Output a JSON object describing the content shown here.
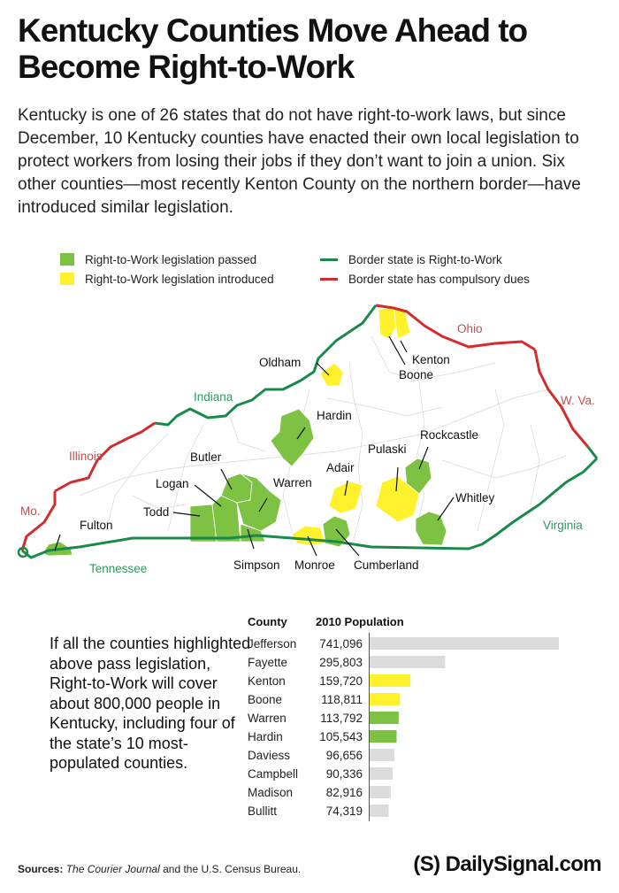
{
  "header": {
    "title": "Kentucky Counties Move Ahead to Become Right-to-Work",
    "intro": "Kentucky is one of 26 states that do not have right-to-work laws, but since December, 10 Kentucky counties have enacted their own local legislation to protect workers from losing their jobs if they don’t want to join a union. Six other counties—most recently Kenton County on the northern border—have introduced similar legislation."
  },
  "legend": {
    "passed": "Right-to-Work legislation passed",
    "introduced": "Right-to-Work legislation introduced",
    "border_rtw": "Border state is Right-to-Work",
    "border_dues": "Border state has compulsory dues"
  },
  "colors": {
    "passed": "#7dc242",
    "introduced": "#fff22d",
    "border_rtw": "#1a8a4a",
    "border_dues": "#d42c2c",
    "bar_other": "#dcdcdc",
    "state_label_red": "#c0504d",
    "state_label_green": "#2e9a5e"
  },
  "map": {
    "states": {
      "ohio": "Ohio",
      "indiana": "Indiana",
      "illinois": "Illinois",
      "wva": "W. Va.",
      "virginia": "Virginia",
      "tennessee": "Tennessee",
      "missouri": "Mo."
    },
    "counties": {
      "kenton": "Kenton",
      "boone": "Boone",
      "oldham": "Oldham",
      "hardin": "Hardin",
      "butler": "Butler",
      "logan": "Logan",
      "warren": "Warren",
      "todd": "Todd",
      "simpson": "Simpson",
      "fulton": "Fulton",
      "adair": "Adair",
      "pulaski": "Pulaski",
      "rockcastle": "Rockcastle",
      "whitley": "Whitley",
      "monroe": "Monroe",
      "cumberland": "Cumberland"
    }
  },
  "side_note": "If all the counties highlighted above pass legislation, Right-to-Work will cover about 800,000 people in Kentucky, including four of the state’s 10 most-populated counties.",
  "chart_data": {
    "type": "bar",
    "orientation": "horizontal",
    "column_headers": [
      "County",
      "2010 Population"
    ],
    "categories": [
      "Jefferson",
      "Fayette",
      "Kenton",
      "Boone",
      "Warren",
      "Hardin",
      "Daviess",
      "Campbell",
      "Madison",
      "Bullitt"
    ],
    "values": [
      741096,
      295803,
      159720,
      118811,
      113792,
      105543,
      96656,
      90336,
      82916,
      74319
    ],
    "value_labels": [
      "741,096",
      "295,803",
      "159,720",
      "118,811",
      "113,792",
      "105,543",
      "96,656",
      "90,336",
      "82,916",
      "74,319"
    ],
    "status": [
      "none",
      "none",
      "introduced",
      "introduced",
      "passed",
      "passed",
      "none",
      "none",
      "none",
      "none"
    ],
    "xlim": [
      0,
      741096
    ]
  },
  "footer": {
    "sources_label": "Sources:",
    "sources_italic": "The Courier Journal",
    "sources_rest": "and the U.S. Census Bureau.",
    "logo": "(S) DailySignal.com"
  }
}
